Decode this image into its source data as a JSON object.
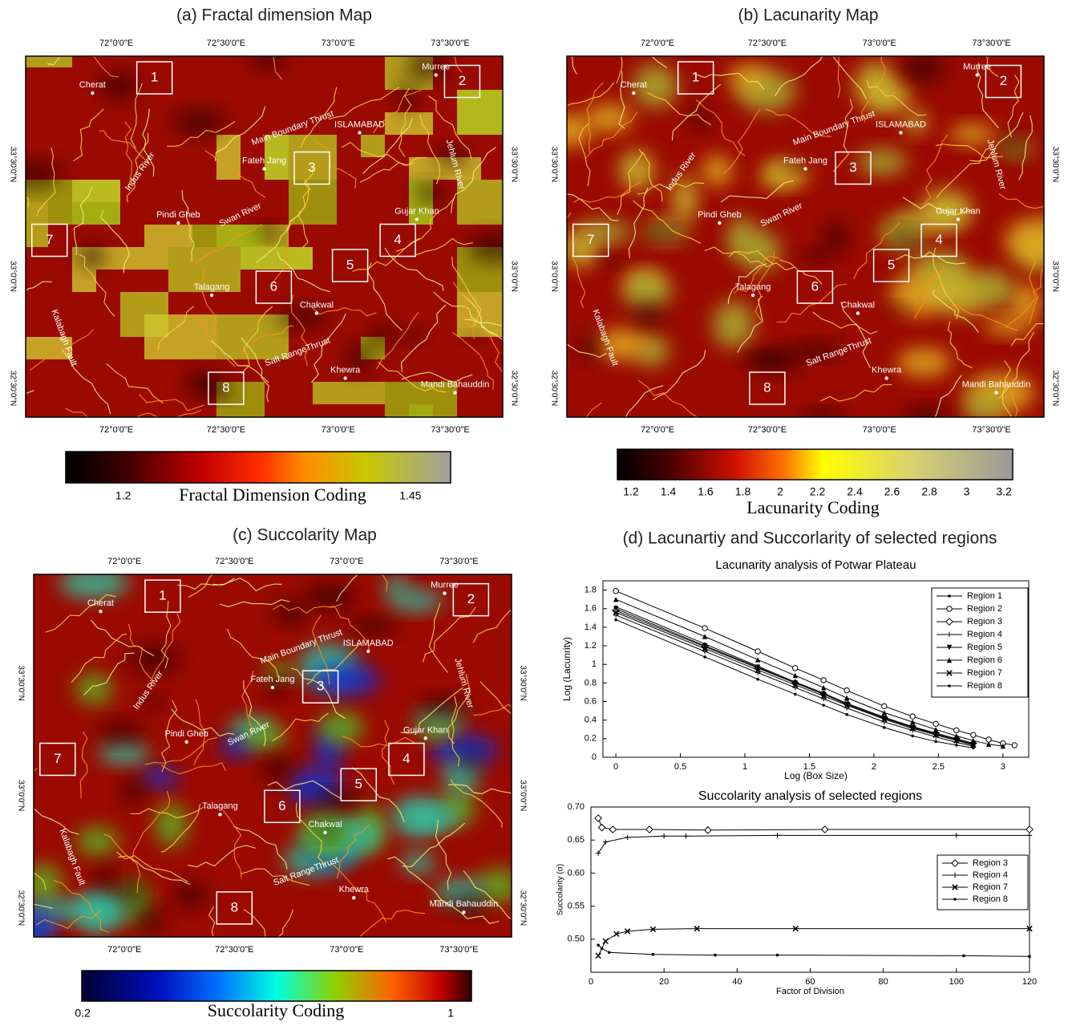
{
  "maps": [
    {
      "title": "(a) Fractal dimension Map",
      "lon_labels": [
        "72°0'0\"E",
        "72°30'0\"E",
        "73°0'0\"E",
        "73°30'0\"E"
      ],
      "lat_labels": [
        "33°30'0\"N",
        "33°0'0\"N",
        "32°30'0\"N"
      ],
      "places": [
        "Cherat",
        "Murree",
        "ISLAMABAD",
        "Main Boundary Thrust",
        "Fateh Jang",
        "Indus River",
        "Jehlum River",
        "Pindi Gheb",
        "Swan River",
        "Gujar Khan",
        "Talagang",
        "Chakwal",
        "Salt RangeThrust",
        "Khewra",
        "Mandi Bahauddin",
        "Kalabagh Fault"
      ],
      "regions": [
        "1",
        "2",
        "3",
        "4",
        "5",
        "6",
        "7",
        "8"
      ],
      "colorbar": {
        "label": "Fractal Dimension Coding",
        "lim": [
          1.15,
          1.485
        ],
        "ticks": [
          1.2,
          1.45
        ]
      }
    },
    {
      "title": "(b) Lacunarity Map",
      "lon_labels": [
        "72°0'0\"E",
        "72°30'0\"E",
        "73°0'0\"E",
        "73°30'0\"E"
      ],
      "lat_labels": [
        "33°30'0\"N",
        "33°0'0\"N",
        "32°30'0\"N"
      ],
      "places": [
        "Cherat",
        "Murree",
        "ISLAMABAD",
        "Main Boundary Thrust",
        "Fateh Jang",
        "Indus River",
        "Jehlum River",
        "Pindi Gheb",
        "Swan River",
        "Gujar Khan",
        "Talagang",
        "Chakwal",
        "Salt RangeThrust",
        "Khewra",
        "Mandi Bahauddin",
        "Kalabagh Fault"
      ],
      "regions": [
        "1",
        "2",
        "3",
        "4",
        "5",
        "6",
        "7",
        "8"
      ],
      "colorbar": {
        "label": "Lacunarity Coding",
        "lim": [
          1.127,
          3.247
        ],
        "ticks": [
          1.2,
          1.4,
          1.6,
          1.8,
          2,
          2.2,
          2.4,
          2.6,
          2.8,
          3,
          3.2
        ]
      }
    },
    {
      "title": "(c) Succolarity Map",
      "lon_labels": [
        "72°0'0\"E",
        "72°30'0\"E",
        "73°0'0\"E",
        "73°30'0\"E"
      ],
      "lat_labels": [
        "33°30'0\"N",
        "33°0'0\"N",
        "32°30'0\"N"
      ],
      "places": [
        "Cherat",
        "Murree",
        "ISLAMABAD",
        "Main Boundary Thrust",
        "Fateh Jang",
        "Indus River",
        "Jehlum River",
        "Pindi Gheb",
        "Swan River",
        "Gujar Khan",
        "Talagang",
        "Chakwal",
        "Salt RangeThrust",
        "Khewra",
        "Mandi Bahauddin",
        "Kalabagh Fault"
      ],
      "regions": [
        "1",
        "2",
        "3",
        "4",
        "5",
        "6",
        "7",
        "8"
      ],
      "colorbar": {
        "label": "Succolarity Coding",
        "lim": [
          0.198,
          1.045
        ],
        "ticks": [
          0.2,
          1
        ]
      }
    }
  ],
  "panel_d_title": "(d) Lacunartiy and Succorlarity of selected regions",
  "chart_data": [
    {
      "type": "line",
      "title": "Lacunarity analysis of Potwar Plateau",
      "x_label": "Log (Box Size)",
      "y_label": "Log (Lacunrity)",
      "xlim": [
        -0.1,
        3.2
      ],
      "xticks": [
        0,
        0.5,
        1,
        1.5,
        2,
        2.5,
        3
      ],
      "ylim": [
        0,
        1.9
      ],
      "yticks": [
        0,
        0.2,
        0.4,
        0.6,
        0.8,
        1,
        1.2,
        1.4,
        1.6,
        1.8
      ],
      "legend": "upper right",
      "series": [
        {
          "name": "Region 1",
          "color": "#000000",
          "marker": "dot",
          "x": [
            0,
            0.69,
            1.1,
            1.39,
            1.61,
            1.79,
            2.08,
            2.3,
            2.48,
            2.64,
            2.77
          ],
          "values": [
            1.62,
            1.22,
            0.98,
            0.81,
            0.69,
            0.58,
            0.43,
            0.33,
            0.25,
            0.19,
            0.14
          ]
        },
        {
          "name": "Region 2",
          "color": "#000000",
          "marker": "circle",
          "x": [
            0,
            0.69,
            1.1,
            1.39,
            1.61,
            1.79,
            2.08,
            2.3,
            2.48,
            2.64,
            2.77,
            2.89,
            3.0,
            3.09
          ],
          "values": [
            1.79,
            1.39,
            1.14,
            0.96,
            0.83,
            0.72,
            0.55,
            0.44,
            0.36,
            0.29,
            0.24,
            0.19,
            0.15,
            0.13
          ]
        },
        {
          "name": "Region 3",
          "color": "#000000",
          "marker": "diamond",
          "x": [
            0,
            0.69,
            1.1,
            1.39,
            1.61,
            1.79,
            2.08,
            2.3,
            2.48,
            2.64,
            2.77
          ],
          "values": [
            1.58,
            1.19,
            0.96,
            0.8,
            0.68,
            0.58,
            0.43,
            0.33,
            0.26,
            0.2,
            0.15
          ]
        },
        {
          "name": "Region 4",
          "color": "#000000",
          "marker": "plus",
          "x": [
            0,
            0.69,
            1.1,
            1.39,
            1.61,
            1.79,
            2.08,
            2.3,
            2.48,
            2.64,
            2.77
          ],
          "values": [
            1.53,
            1.14,
            0.91,
            0.75,
            0.63,
            0.53,
            0.38,
            0.29,
            0.22,
            0.16,
            0.12
          ]
        },
        {
          "name": "Region 5",
          "color": "#000000",
          "marker": "triangle-down",
          "x": [
            0,
            0.69,
            1.1,
            1.39,
            1.61,
            1.79,
            2.08,
            2.3,
            2.48,
            2.64,
            2.77
          ],
          "values": [
            1.6,
            1.2,
            0.97,
            0.8,
            0.68,
            0.57,
            0.42,
            0.32,
            0.25,
            0.19,
            0.14
          ]
        },
        {
          "name": "Region 6",
          "color": "#000000",
          "marker": "triangle",
          "x": [
            0,
            0.69,
            1.1,
            1.39,
            1.61,
            1.79,
            2.08,
            2.3,
            2.48,
            2.64,
            2.77,
            2.89,
            3.0
          ],
          "values": [
            1.7,
            1.3,
            1.05,
            0.88,
            0.75,
            0.64,
            0.48,
            0.38,
            0.3,
            0.23,
            0.18,
            0.14,
            0.12
          ]
        },
        {
          "name": "Region 7",
          "color": "#000000",
          "marker": "star",
          "x": [
            0,
            0.69,
            1.1,
            1.39,
            1.61,
            1.79,
            2.08,
            2.3,
            2.48,
            2.64,
            2.77
          ],
          "values": [
            1.56,
            1.17,
            0.94,
            0.78,
            0.66,
            0.56,
            0.41,
            0.31,
            0.24,
            0.18,
            0.13
          ]
        },
        {
          "name": "Region 8",
          "color": "#000000",
          "marker": "dot",
          "x": [
            0,
            0.69,
            1.1,
            1.39,
            1.61,
            1.79,
            2.08,
            2.3,
            2.48,
            2.64,
            2.77
          ],
          "values": [
            1.48,
            1.08,
            0.84,
            0.68,
            0.56,
            0.46,
            0.32,
            0.23,
            0.17,
            0.13,
            0.1
          ]
        }
      ]
    },
    {
      "type": "line",
      "title": "Succolarity analysis of selected regions",
      "x_label": "Factor of Division",
      "y_label": "Succolarity (σ)",
      "xlim": [
        0,
        120
      ],
      "xticks": [
        0,
        20,
        40,
        60,
        80,
        100,
        120
      ],
      "ylim": [
        0.45,
        0.7
      ],
      "yticks": [
        {
          "value": 0.5,
          "label": "0.50"
        },
        {
          "value": 0.55,
          "label": "0.55"
        },
        {
          "value": 0.6,
          "label": "0.60"
        },
        {
          "value": 0.65,
          "label": "0.65"
        },
        {
          "value": 0.7,
          "label": "0.70"
        }
      ],
      "legend": "center right",
      "series": [
        {
          "name": "Region 3",
          "color": "#000000",
          "marker": "diamond",
          "x": [
            2,
            3,
            6,
            16,
            32,
            64,
            120
          ],
          "values": [
            0.683,
            0.669,
            0.666,
            0.666,
            0.665,
            0.666,
            0.666
          ]
        },
        {
          "name": "Region 4",
          "color": "#000000",
          "marker": "plus",
          "x": [
            2,
            4,
            10,
            20,
            26,
            51,
            100,
            120
          ],
          "values": [
            0.63,
            0.647,
            0.654,
            0.656,
            0.656,
            0.657,
            0.657,
            0.657
          ]
        },
        {
          "name": "Region 7",
          "color": "#000000",
          "marker": "star",
          "x": [
            2,
            4,
            7,
            10,
            17,
            29,
            56,
            120
          ],
          "values": [
            0.475,
            0.497,
            0.508,
            0.512,
            0.515,
            0.516,
            0.516,
            0.516
          ]
        },
        {
          "name": "Region 8",
          "color": "#000000",
          "marker": "dot",
          "x": [
            2,
            3,
            5,
            17,
            34,
            51,
            102,
            120
          ],
          "values": [
            0.491,
            0.486,
            0.48,
            0.477,
            0.476,
            0.476,
            0.475,
            0.474
          ]
        }
      ]
    }
  ]
}
